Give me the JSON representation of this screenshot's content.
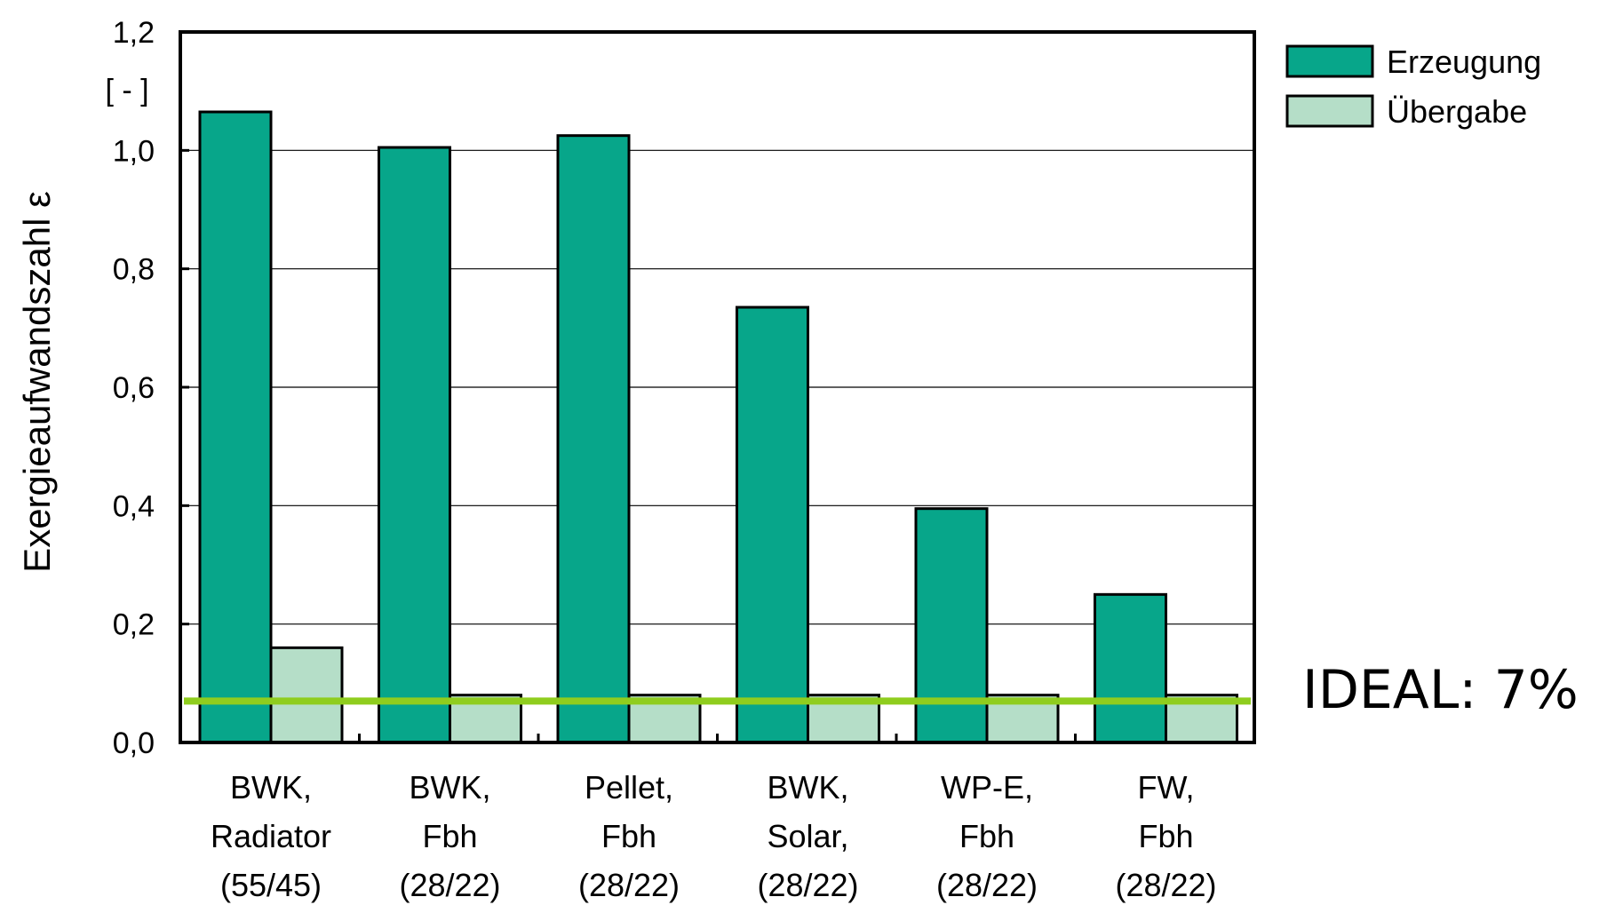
{
  "chart_data": {
    "type": "bar",
    "categories": [
      [
        "BWK,",
        "Radiator",
        "(55/45)"
      ],
      [
        "BWK,",
        "Fbh",
        "(28/22)"
      ],
      [
        "Pellet,",
        "Fbh",
        "(28/22)"
      ],
      [
        "BWK,",
        "Solar,",
        "(28/22)"
      ],
      [
        "WP-E,",
        "Fbh",
        "(28/22)"
      ],
      [
        "FW,",
        "Fbh",
        "(28/22)"
      ]
    ],
    "series": [
      {
        "name": "Erzeugung",
        "color": "#07a68a",
        "values": [
          1.065,
          1.005,
          1.025,
          0.735,
          0.395,
          0.25
        ]
      },
      {
        "name": "Übergabe",
        "color": "#b5dec8",
        "values": [
          0.16,
          0.08,
          0.08,
          0.08,
          0.08,
          0.08
        ]
      }
    ],
    "ylabel": "Exergieaufwandszahl ε",
    "yunit": "[ - ]",
    "ylim": [
      0,
      1.2
    ],
    "yticks": [
      "0,0",
      "0,2",
      "0,4",
      "0,6",
      "0,8",
      "1,0",
      "1,2"
    ],
    "grid": true,
    "legend_position": "top-right",
    "reference_line": {
      "value": 0.07,
      "color": "#8fcd1e",
      "label": "IDEAL: 7%"
    }
  }
}
